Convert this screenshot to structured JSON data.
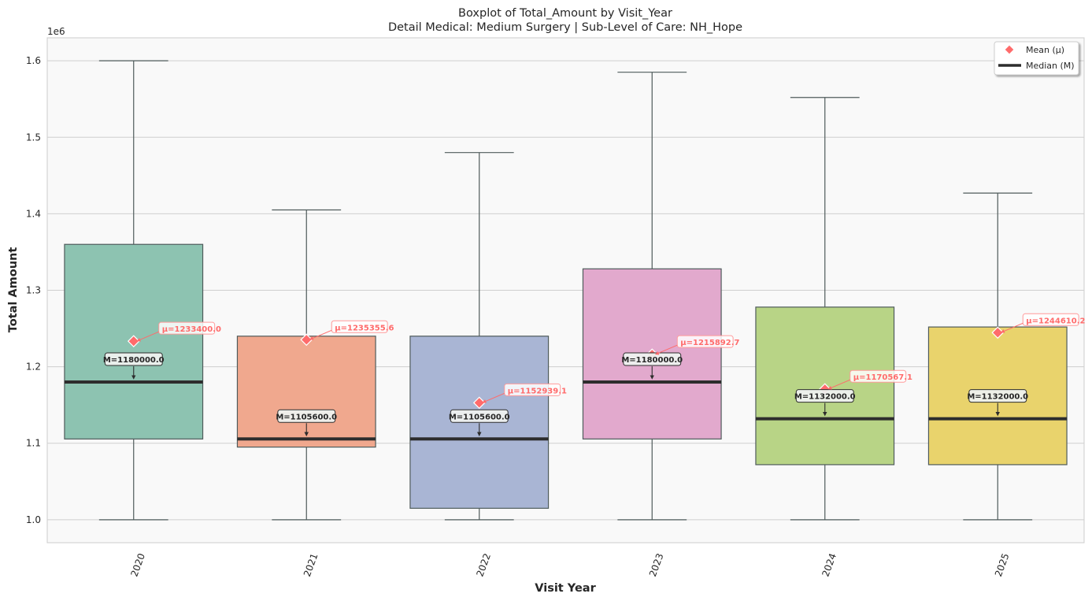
{
  "chart_data": {
    "type": "boxplot",
    "title": "Boxplot of Total_Amount by Visit_Year",
    "subtitle": "Detail Medical: Medium Surgery | Sub-Level of Care: NH_Hope",
    "xlabel": "Visit Year",
    "ylabel": "Total Amount",
    "y_offset_label": "1e6",
    "ylim": [
      970000,
      1630000
    ],
    "yticks": [
      1000000,
      1100000,
      1200000,
      1300000,
      1400000,
      1500000,
      1600000
    ],
    "ytick_labels": [
      "1.0",
      "1.1",
      "1.2",
      "1.3",
      "1.4",
      "1.5",
      "1.6"
    ],
    "grid": true,
    "legend_position": "top-right",
    "legend": [
      {
        "label": "Mean (μ)",
        "color": "#ff6b6b",
        "marker": "diamond"
      },
      {
        "label": "Median (M)",
        "color": "#2d2d2d",
        "marker": "line"
      }
    ],
    "categories": [
      "2020",
      "2021",
      "2022",
      "2023",
      "2024",
      "2025"
    ],
    "boxes": [
      {
        "year": "2020",
        "whisker_low": 1000000,
        "q1": 1105600,
        "median": 1180000,
        "q3": 1360000,
        "whisker_high": 1600000,
        "mean": 1233400.0,
        "mean_label": "μ=1233400.0",
        "median_label": "M=1180000.0",
        "color": "#8dc3b1"
      },
      {
        "year": "2021",
        "whisker_low": 1000000,
        "q1": 1095000,
        "median": 1105600,
        "q3": 1240000,
        "whisker_high": 1405000,
        "mean": 1235355.6,
        "mean_label": "μ=1235355.6",
        "median_label": "M=1105600.0",
        "color": "#f0a88e"
      },
      {
        "year": "2022",
        "whisker_low": 1000000,
        "q1": 1015000,
        "median": 1105600,
        "q3": 1240000,
        "whisker_high": 1480000,
        "mean": 1152939.1,
        "mean_label": "μ=1152939.1",
        "median_label": "M=1105600.0",
        "color": "#a9b5d4"
      },
      {
        "year": "2023",
        "whisker_low": 1000000,
        "q1": 1105600,
        "median": 1180000,
        "q3": 1328000,
        "whisker_high": 1585000,
        "mean": 1215892.7,
        "mean_label": "μ=1215892.7",
        "median_label": "M=1180000.0",
        "color": "#e2a9cd"
      },
      {
        "year": "2024",
        "whisker_low": 1000000,
        "q1": 1072000,
        "median": 1132000,
        "q3": 1278000,
        "whisker_high": 1552000,
        "mean": 1170567.1,
        "mean_label": "μ=1170567.1",
        "median_label": "M=1132000.0",
        "color": "#b8d486"
      },
      {
        "year": "2025",
        "whisker_low": 1000000,
        "q1": 1072000,
        "median": 1132000,
        "q3": 1252000,
        "whisker_high": 1427000,
        "mean": 1244610.2,
        "mean_label": "μ=1244610.2",
        "median_label": "M=1132000.0",
        "color": "#e9d36c"
      }
    ]
  }
}
